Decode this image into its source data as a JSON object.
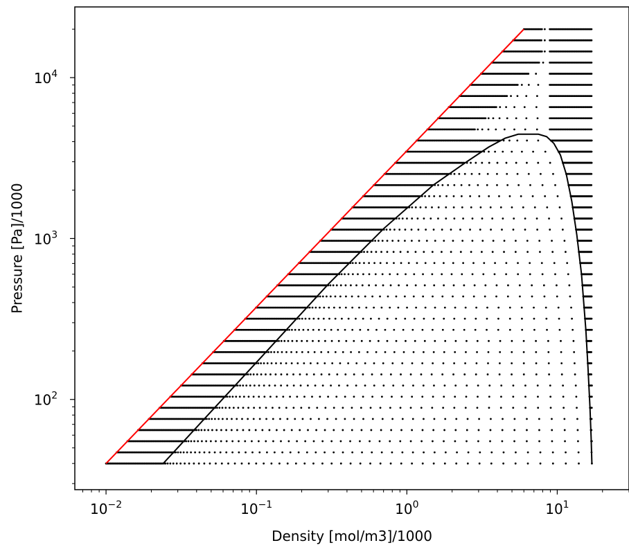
{
  "chart_data": {
    "type": "scatter",
    "title": "",
    "xlabel": "Density [mol/m3]/1000",
    "ylabel": "Pressure [Pa]/1000",
    "x_scale": "log",
    "y_scale": "log",
    "xlim": [
      0.0062,
      30
    ],
    "ylim": [
      27.5,
      27500
    ],
    "grid": false,
    "x_ticks": [
      {
        "base": "10",
        "exp": "−2",
        "value": 0.01
      },
      {
        "base": "10",
        "exp": "−1",
        "value": 0.1
      },
      {
        "base": "10",
        "exp": "0",
        "value": 1
      },
      {
        "base": "10",
        "exp": "1",
        "value": 10
      }
    ],
    "y_ticks": [
      {
        "base": "10",
        "exp": "2",
        "value": 100
      },
      {
        "base": "10",
        "exp": "3",
        "value": 1000
      },
      {
        "base": "10",
        "exp": "4",
        "value": 10000
      }
    ],
    "colors": {
      "boundary_line": "#ff0000",
      "envelope_line": "#000000",
      "points": "#000000"
    },
    "grid_points": {
      "pressure_range": [
        40,
        20000
      ],
      "isobar_count": 40,
      "density_min": 0.01,
      "density_max": 17.0
    },
    "series": [
      {
        "type": "line",
        "color": "#ff0000",
        "x": [
          0.01,
          6.0
        ],
        "y": [
          40,
          20000
        ]
      },
      {
        "type": "line",
        "color": "#000000",
        "x": [
          0.024,
          0.1,
          0.3,
          0.7,
          1.5,
          2.5,
          3.5,
          4.5,
          5.5,
          6.5,
          7.5,
          8.5,
          9.5,
          10.5,
          11.5,
          12.5,
          13.5,
          14.5,
          15.5,
          16.0,
          16.5,
          16.8,
          17.0
        ],
        "y": [
          40,
          170,
          520,
          1150,
          2150,
          3000,
          3700,
          4200,
          4450,
          4450,
          4450,
          4300,
          3900,
          3300,
          2500,
          1700,
          1050,
          600,
          270,
          160,
          90,
          58,
          40
        ]
      }
    ]
  }
}
